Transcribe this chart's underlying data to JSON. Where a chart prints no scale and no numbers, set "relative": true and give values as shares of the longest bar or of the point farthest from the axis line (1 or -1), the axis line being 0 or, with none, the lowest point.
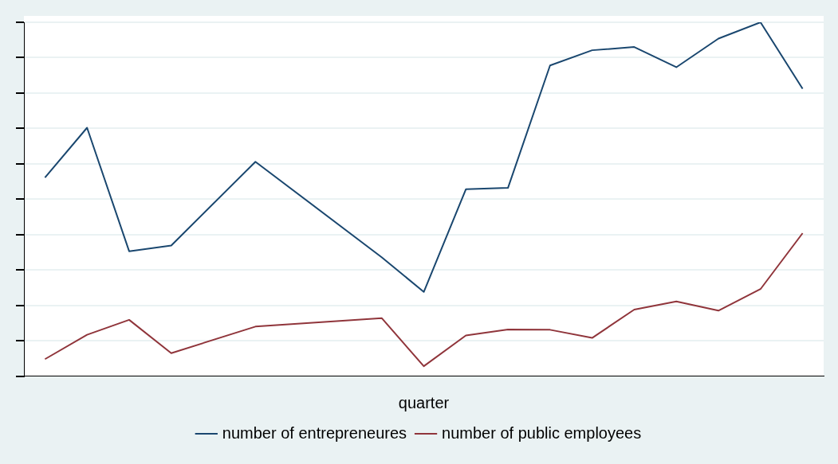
{
  "chart_data": {
    "type": "line",
    "xlabel": "quarter",
    "relative": true,
    "grid": "y",
    "legend": "bottom",
    "marker": "none",
    "line_style": "solid",
    "categories": [
      null,
      null,
      null,
      null,
      null,
      null,
      null,
      null,
      null,
      null,
      null,
      null,
      null,
      null,
      null,
      null,
      null,
      null,
      null
    ],
    "series": [
      {
        "name": "number of entrepreneures",
        "color": "#1a476f",
        "values": [
          0.561,
          0.702,
          0.353,
          0.369,
          null,
          0.606,
          null,
          null,
          0.336,
          0.238,
          0.528,
          0.532,
          0.878,
          0.921,
          0.93,
          0.873,
          0.954,
          1,
          0.812
        ]
      },
      {
        "name": "number of public employees",
        "color": "#90353b",
        "values": [
          0.048,
          0.117,
          0.159,
          0.065,
          null,
          0.14,
          null,
          null,
          0.164,
          0.028,
          0.115,
          0.132,
          0.131,
          0.108,
          0.188,
          0.211,
          0.185,
          0.246,
          0.404
        ]
      }
    ]
  }
}
